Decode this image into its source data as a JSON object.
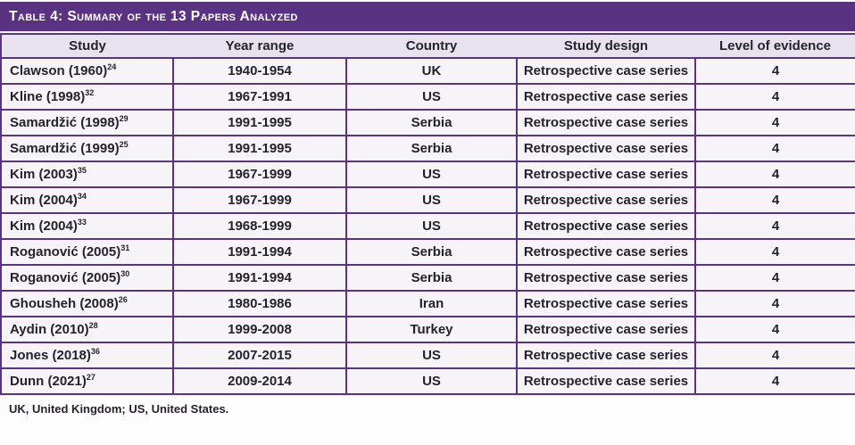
{
  "colors": {
    "title_bar": "#5a3282",
    "table_border": "#5a3483",
    "header_row_bg": "#e8e2ee",
    "data_row_bg": "#f6f3f9",
    "text": "#272229",
    "title_text": "#ffffff"
  },
  "table": {
    "title": "Table 4: Summary of the 13 Papers Analyzed",
    "columns": [
      "Study",
      "Year range",
      "Country",
      "Study design",
      "Level of evidence"
    ],
    "rows": [
      {
        "study": "Clawson (1960)",
        "ref": "24",
        "year_range": "1940-1954",
        "country": "UK",
        "study_design": "Retrospective case series",
        "level_of_evidence": "4"
      },
      {
        "study": "Kline (1998)",
        "ref": "32",
        "year_range": "1967-1991",
        "country": "US",
        "study_design": "Retrospective case series",
        "level_of_evidence": "4"
      },
      {
        "study": "Samardžić (1998)",
        "ref": "29",
        "year_range": "1991-1995",
        "country": "Serbia",
        "study_design": "Retrospective case series",
        "level_of_evidence": "4"
      },
      {
        "study": "Samardžić (1999)",
        "ref": "25",
        "year_range": "1991-1995",
        "country": "Serbia",
        "study_design": "Retrospective case series",
        "level_of_evidence": "4"
      },
      {
        "study": "Kim (2003)",
        "ref": "35",
        "year_range": "1967-1999",
        "country": "US",
        "study_design": "Retrospective case series",
        "level_of_evidence": "4"
      },
      {
        "study": "Kim (2004)",
        "ref": "34",
        "year_range": "1967-1999",
        "country": "US",
        "study_design": "Retrospective case series",
        "level_of_evidence": "4"
      },
      {
        "study": "Kim (2004)",
        "ref": "33",
        "year_range": "1968-1999",
        "country": "US",
        "study_design": "Retrospective case series",
        "level_of_evidence": "4"
      },
      {
        "study": "Roganović (2005)",
        "ref": "31",
        "year_range": "1991-1994",
        "country": "Serbia",
        "study_design": "Retrospective case series",
        "level_of_evidence": "4"
      },
      {
        "study": "Roganović (2005)",
        "ref": "30",
        "year_range": "1991-1994",
        "country": "Serbia",
        "study_design": "Retrospective case series",
        "level_of_evidence": "4"
      },
      {
        "study": "Ghousheh (2008)",
        "ref": "26",
        "year_range": "1980-1986",
        "country": "Iran",
        "study_design": "Retrospective case series",
        "level_of_evidence": "4"
      },
      {
        "study": "Aydin (2010)",
        "ref": "28",
        "year_range": "1999-2008",
        "country": "Turkey",
        "study_design": "Retrospective case series",
        "level_of_evidence": "4"
      },
      {
        "study": "Jones (2018)",
        "ref": "36",
        "year_range": "2007-2015",
        "country": "US",
        "study_design": "Retrospective case series",
        "level_of_evidence": "4"
      },
      {
        "study": "Dunn (2021)",
        "ref": "27",
        "year_range": "2009-2014",
        "country": "US",
        "study_design": "Retrospective case series",
        "level_of_evidence": "4"
      }
    ],
    "footnote": "UK, United Kingdom; US, United States."
  }
}
